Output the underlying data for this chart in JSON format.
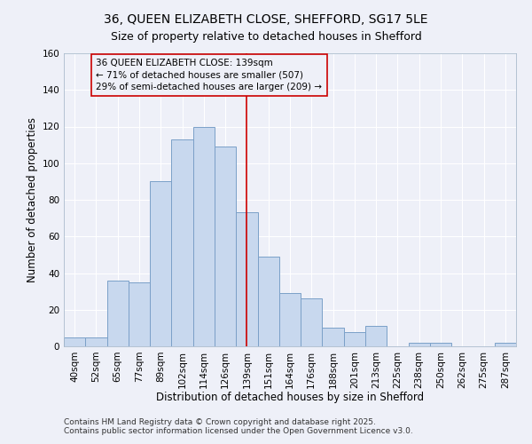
{
  "title": "36, QUEEN ELIZABETH CLOSE, SHEFFORD, SG17 5LE",
  "subtitle": "Size of property relative to detached houses in Shefford",
  "xlabel": "Distribution of detached houses by size in Shefford",
  "ylabel": "Number of detached properties",
  "bin_labels": [
    "40sqm",
    "52sqm",
    "65sqm",
    "77sqm",
    "89sqm",
    "102sqm",
    "114sqm",
    "126sqm",
    "139sqm",
    "151sqm",
    "164sqm",
    "176sqm",
    "188sqm",
    "201sqm",
    "213sqm",
    "225sqm",
    "238sqm",
    "250sqm",
    "262sqm",
    "275sqm",
    "287sqm"
  ],
  "bar_values": [
    5,
    5,
    36,
    35,
    90,
    113,
    120,
    109,
    73,
    49,
    29,
    26,
    10,
    8,
    11,
    0,
    2,
    2,
    0,
    0,
    2
  ],
  "bar_color": "#c8d8ee",
  "bar_edgecolor": "#7ba0c8",
  "vline_x": 8,
  "vline_color": "#cc0000",
  "annotation_title": "36 QUEEN ELIZABETH CLOSE: 139sqm",
  "annotation_line1": "← 71% of detached houses are smaller (507)",
  "annotation_line2": "29% of semi-detached houses are larger (209) →",
  "annotation_box_edgecolor": "#cc0000",
  "ylim": [
    0,
    160
  ],
  "yticks": [
    0,
    20,
    40,
    60,
    80,
    100,
    120,
    140,
    160
  ],
  "footnote1": "Contains HM Land Registry data © Crown copyright and database right 2025.",
  "footnote2": "Contains public sector information licensed under the Open Government Licence v3.0.",
  "background_color": "#eef0f8",
  "grid_color": "#ffffff",
  "title_fontsize": 10,
  "subtitle_fontsize": 9,
  "axis_label_fontsize": 8.5,
  "tick_fontsize": 7.5,
  "annotation_fontsize": 7.5,
  "footnote_fontsize": 6.5
}
